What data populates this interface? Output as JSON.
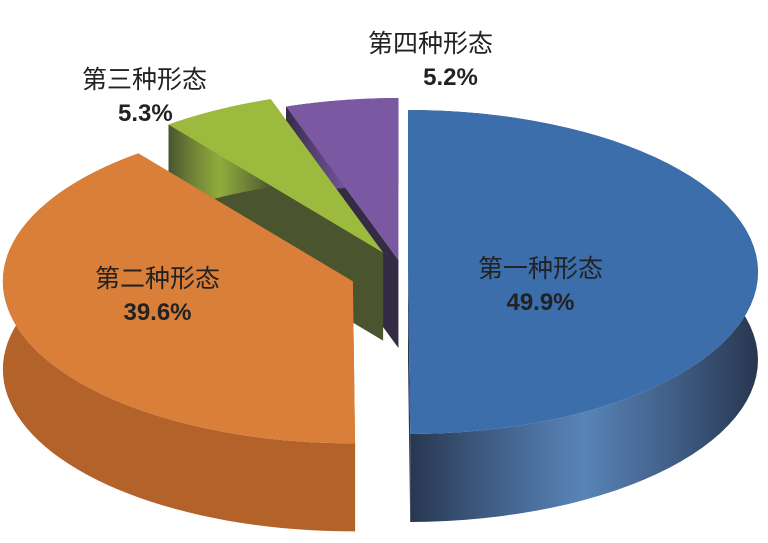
{
  "chart_data": {
    "type": "pie",
    "style": "3d-exploded",
    "title": "",
    "slices": [
      {
        "label": "第一种形态",
        "value": 49.9,
        "value_label": "49.9%",
        "color": "#3b6eab",
        "side_color": "#28364f"
      },
      {
        "label": "第二种形态",
        "value": 39.6,
        "value_label": "39.6%",
        "color": "#d97f3a",
        "side_color": "#b3622a"
      },
      {
        "label": "第三种形态",
        "value": 5.3,
        "value_label": "5.3%",
        "color": "#9cbb3e",
        "side_color": "#4a5530"
      },
      {
        "label": "第四种形态",
        "value": 5.2,
        "value_label": "5.2%",
        "color": "#7b58a2",
        "side_color": "#342c45"
      }
    ],
    "start_angle": "12 o'clock",
    "direction": "clockwise",
    "legend": "none"
  }
}
